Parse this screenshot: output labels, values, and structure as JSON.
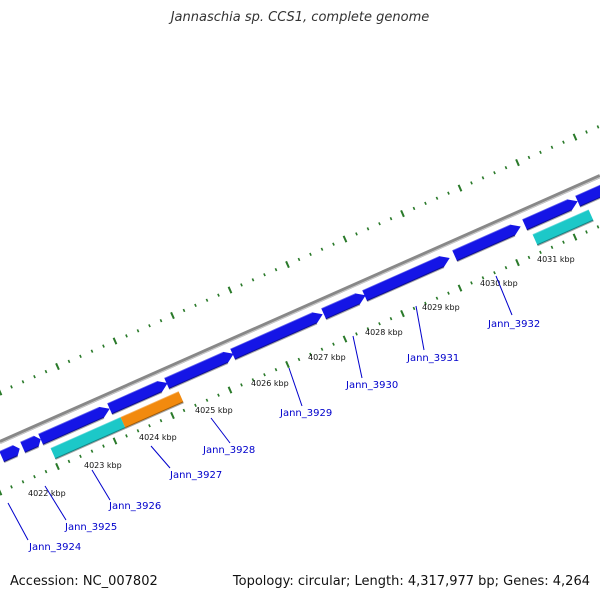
{
  "title": "Jannaschia sp. CCS1, complete genome",
  "footer": {
    "accession": "Accession: NC_007802",
    "summary": "Topology: circular; Length: 4,317,977 bp; Genes: 4,264"
  },
  "colors": {
    "backbone": "#888888",
    "gene_blue": "#1515e6",
    "gene_cyan": "#1cc8c8",
    "gene_orange": "#f28a0e",
    "tick_green": "#2a7a2a",
    "label": "#0000cc"
  },
  "scale_labels": [
    "4022 kbp",
    "4023 kbp",
    "4024 kbp",
    "4025 kbp",
    "4026 kbp",
    "4027 kbp",
    "4028 kbp",
    "4029 kbp",
    "4030 kbp",
    "4031 kbp"
  ],
  "gene_labels": [
    "Jann_3924",
    "Jann_3925",
    "Jann_3926",
    "Jann_3927",
    "Jann_3928",
    "Jann_3929",
    "Jann_3930",
    "Jann_3931",
    "Jann_3932"
  ]
}
